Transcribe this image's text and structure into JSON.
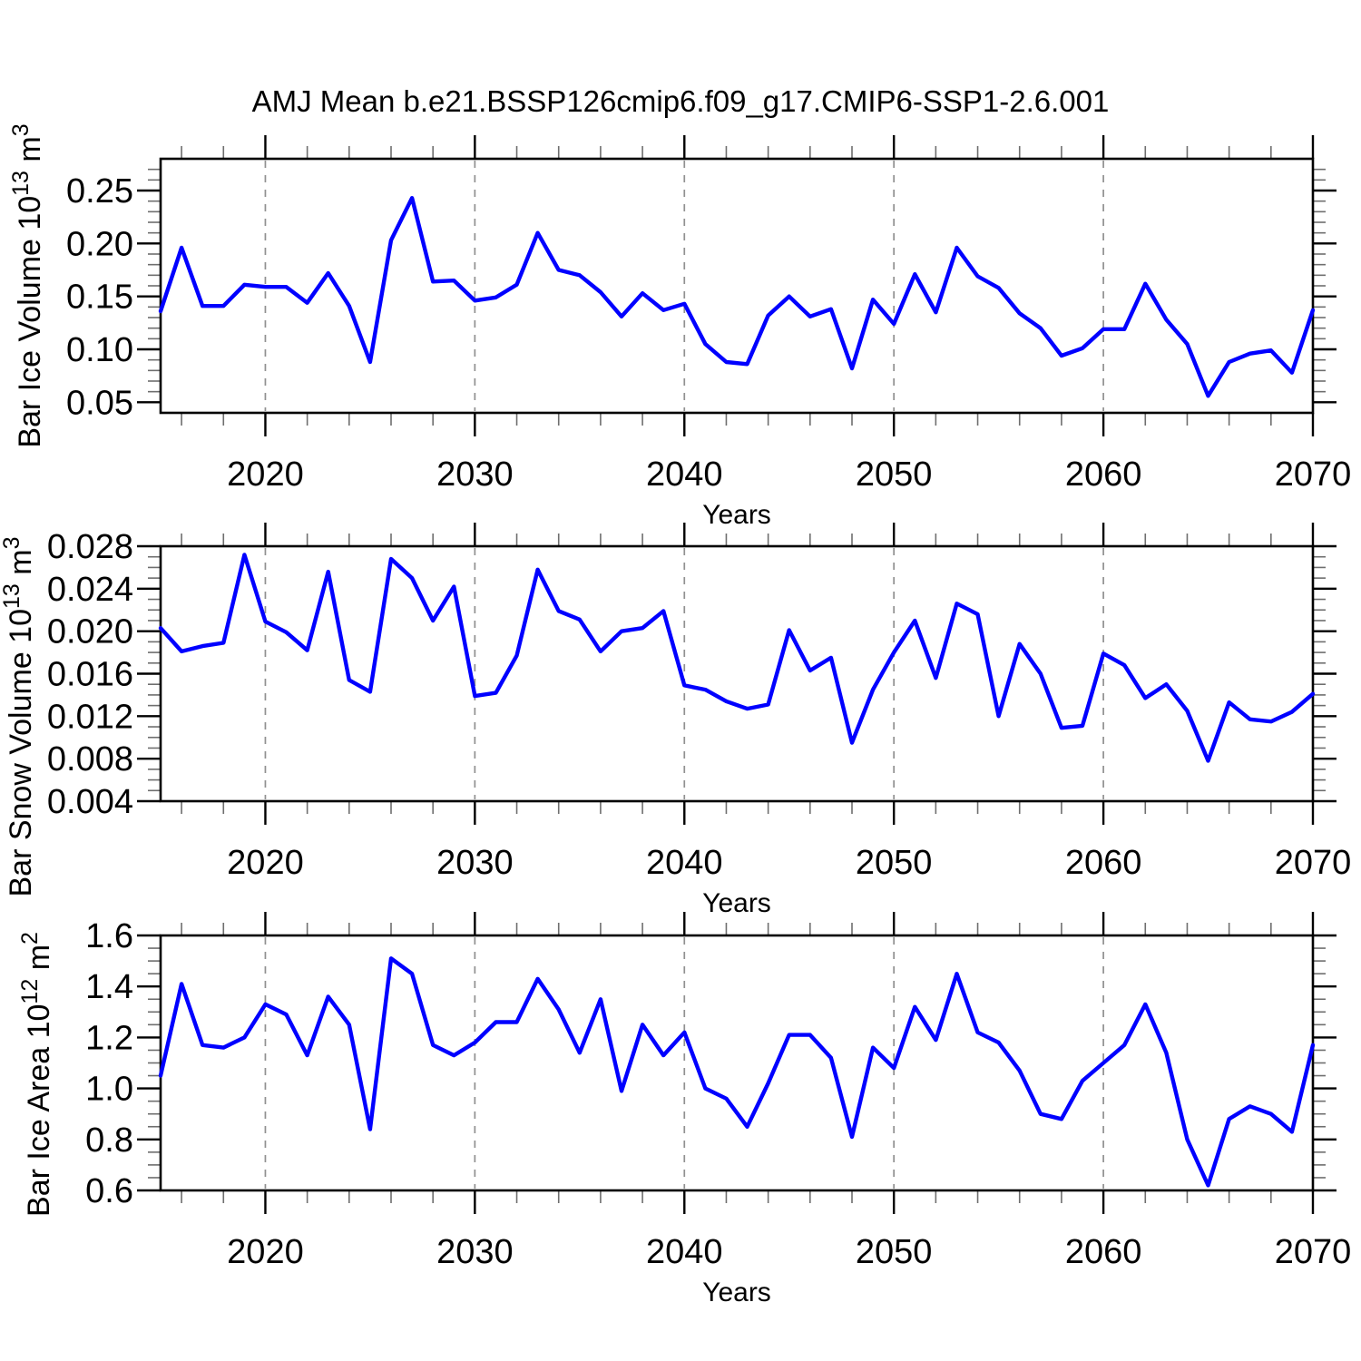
{
  "title": "AMJ Mean b.e21.BSSP126cmip6.f09_g17.CMIP6-SSP1-2.6.001",
  "line_color": "#0000ff",
  "grid_color": "#909090",
  "frame_color": "#000000",
  "minor_tick_color": "#6e6e6e",
  "years": [
    2015,
    2016,
    2017,
    2018,
    2019,
    2020,
    2021,
    2022,
    2023,
    2024,
    2025,
    2026,
    2027,
    2028,
    2029,
    2030,
    2031,
    2032,
    2033,
    2034,
    2035,
    2036,
    2037,
    2038,
    2039,
    2040,
    2041,
    2042,
    2043,
    2044,
    2045,
    2046,
    2047,
    2048,
    2049,
    2050,
    2051,
    2052,
    2053,
    2054,
    2055,
    2056,
    2057,
    2058,
    2059,
    2060,
    2061,
    2062,
    2063,
    2064,
    2065,
    2066,
    2067,
    2068,
    2069,
    2070
  ],
  "chart_data": [
    {
      "type": "line",
      "name": "bar-ice-volume",
      "ylabel": "Bar Ice Volume 10^13 m^3",
      "ylabel_parts": [
        {
          "t": "Bar Ice Volume 10"
        },
        {
          "t": "13",
          "sup": true
        },
        {
          "t": " m"
        },
        {
          "t": "3",
          "sup": true
        }
      ],
      "xlabel": "Years",
      "values": [
        0.136,
        0.196,
        0.141,
        0.141,
        0.161,
        0.159,
        0.159,
        0.144,
        0.172,
        0.141,
        0.088,
        0.203,
        0.243,
        0.164,
        0.165,
        0.146,
        0.149,
        0.161,
        0.21,
        0.175,
        0.17,
        0.154,
        0.131,
        0.153,
        0.137,
        0.143,
        0.105,
        0.088,
        0.086,
        0.132,
        0.15,
        0.131,
        0.138,
        0.082,
        0.147,
        0.124,
        0.171,
        0.135,
        0.196,
        0.169,
        0.158,
        0.134,
        0.12,
        0.094,
        0.101,
        0.119,
        0.119,
        0.162,
        0.128,
        0.105,
        0.056,
        0.088,
        0.096,
        0.099,
        0.078,
        0.137
      ],
      "xlim": [
        2015,
        2070
      ],
      "ylim": [
        0.04,
        0.28
      ],
      "xtick_values": [
        2020,
        2030,
        2040,
        2050,
        2060,
        2070
      ],
      "xtick_labels": [
        "2020",
        "2030",
        "2040",
        "2050",
        "2060",
        "2070"
      ],
      "x_minor_step": 2,
      "grid_x": [
        2020,
        2030,
        2040,
        2050,
        2060
      ],
      "ytick_values": [
        0.05,
        0.1,
        0.15,
        0.2,
        0.25
      ],
      "ytick_labels": [
        "0.05",
        "0.10",
        "0.15",
        "0.20",
        "0.25"
      ],
      "y_minor_step": 0.01
    },
    {
      "type": "line",
      "name": "bar-snow-volume",
      "ylabel": "Bar Snow Volume 10^13 m^3",
      "ylabel_parts": [
        {
          "t": "Bar Snow Volume 10"
        },
        {
          "t": "13",
          "sup": true
        },
        {
          "t": " m"
        },
        {
          "t": "3",
          "sup": true
        }
      ],
      "xlabel": "Years",
      "values": [
        0.0203,
        0.0181,
        0.0186,
        0.0189,
        0.0272,
        0.0209,
        0.0199,
        0.0182,
        0.0256,
        0.0154,
        0.0143,
        0.0268,
        0.025,
        0.021,
        0.0242,
        0.0139,
        0.0142,
        0.0177,
        0.0258,
        0.0219,
        0.0211,
        0.0181,
        0.02,
        0.0203,
        0.0219,
        0.0149,
        0.0145,
        0.0134,
        0.0127,
        0.0131,
        0.0201,
        0.0163,
        0.0175,
        0.0095,
        0.0145,
        0.018,
        0.021,
        0.0156,
        0.0226,
        0.0216,
        0.012,
        0.0188,
        0.016,
        0.0109,
        0.0111,
        0.0179,
        0.0168,
        0.0137,
        0.015,
        0.0125,
        0.0078,
        0.0133,
        0.0117,
        0.0115,
        0.0124,
        0.0141
      ],
      "xlim": [
        2015,
        2070
      ],
      "ylim": [
        0.004,
        0.028
      ],
      "xtick_values": [
        2020,
        2030,
        2040,
        2050,
        2060,
        2070
      ],
      "xtick_labels": [
        "2020",
        "2030",
        "2040",
        "2050",
        "2060",
        "2070"
      ],
      "x_minor_step": 2,
      "grid_x": [
        2020,
        2030,
        2040,
        2050,
        2060
      ],
      "ytick_values": [
        0.004,
        0.008,
        0.012,
        0.016,
        0.02,
        0.024,
        0.028
      ],
      "ytick_labels": [
        "0.004",
        "0.008",
        "0.012",
        "0.016",
        "0.020",
        "0.024",
        "0.028"
      ],
      "y_minor_step": 0.001
    },
    {
      "type": "line",
      "name": "bar-ice-area",
      "ylabel": "Bar Ice Area 10^12 m^2",
      "ylabel_parts": [
        {
          "t": "Bar Ice Area 10"
        },
        {
          "t": "12",
          "sup": true
        },
        {
          "t": " m"
        },
        {
          "t": "2",
          "sup": true
        }
      ],
      "xlabel": "Years",
      "values": [
        1.05,
        1.41,
        1.17,
        1.16,
        1.2,
        1.33,
        1.29,
        1.13,
        1.36,
        1.25,
        0.84,
        1.51,
        1.45,
        1.17,
        1.13,
        1.18,
        1.26,
        1.26,
        1.43,
        1.31,
        1.14,
        1.35,
        0.99,
        1.25,
        1.13,
        1.22,
        1.0,
        0.96,
        0.85,
        1.02,
        1.21,
        1.21,
        1.12,
        0.81,
        1.16,
        1.08,
        1.32,
        1.19,
        1.45,
        1.22,
        1.18,
        1.07,
        0.9,
        0.88,
        1.03,
        1.1,
        1.17,
        1.33,
        1.14,
        0.8,
        0.62,
        0.88,
        0.93,
        0.9,
        0.83,
        1.17
      ],
      "xlim": [
        2015,
        2070
      ],
      "ylim": [
        0.6,
        1.6
      ],
      "xtick_values": [
        2020,
        2030,
        2040,
        2050,
        2060,
        2070
      ],
      "xtick_labels": [
        "2020",
        "2030",
        "2040",
        "2050",
        "2060",
        "2070"
      ],
      "x_minor_step": 2,
      "grid_x": [
        2020,
        2030,
        2040,
        2050,
        2060
      ],
      "ytick_values": [
        0.6,
        0.8,
        1.0,
        1.2,
        1.4,
        1.6
      ],
      "ytick_labels": [
        "0.6",
        "0.8",
        "1.0",
        "1.2",
        "1.4",
        "1.6"
      ],
      "y_minor_step": 0.05
    }
  ]
}
